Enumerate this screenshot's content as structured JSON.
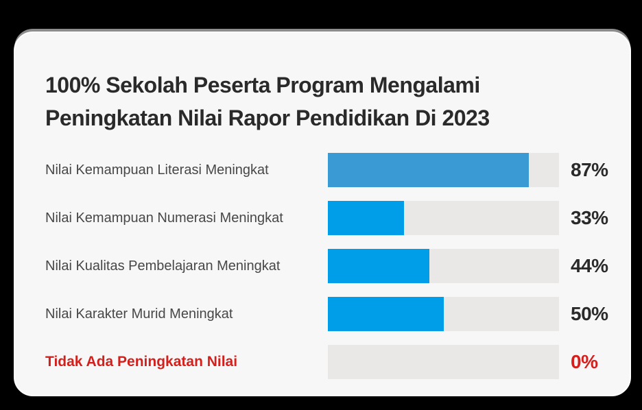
{
  "title": {
    "line1": "100% Sekolah Peserta Program Mengalami",
    "line2": "Peningkatan Nilai Rapor Pendidikan Di 2023",
    "full": "100% Sekolah Peserta Program Mengalami Peningkatan Nilai Rapor Pendidikan Di 2023"
  },
  "colors": {
    "page_background": "#000000",
    "card_background": "#f7f7f7",
    "card_top_band": "#8d8d8d",
    "title_text": "#2a2a2a",
    "label_text": "#474747",
    "track_gray": "#e9e8e6",
    "bar_blue_muted": "#3a9ad4",
    "bar_blue_bright": "#009ee8",
    "accent_red": "#d3201d"
  },
  "rows": [
    {
      "label": "Nilai Kemampuan Literasi Meningkat",
      "value": 87,
      "value_label": "87%",
      "fill_color": "#3a9ad4",
      "emphasis": false
    },
    {
      "label": "Nilai Kemampuan Numerasi Meningkat",
      "value": 33,
      "value_label": "33%",
      "fill_color": "#009ee8",
      "emphasis": false
    },
    {
      "label": "Nilai Kualitas Pembelajaran Meningkat",
      "value": 44,
      "value_label": "44%",
      "fill_color": "#009ee8",
      "emphasis": false
    },
    {
      "label": "Nilai Karakter Murid Meningkat",
      "value": 50,
      "value_label": "50%",
      "fill_color": "#009ee8",
      "emphasis": false
    },
    {
      "label": "Tidak Ada Peningkatan Nilai",
      "value": 0,
      "value_label": "0%",
      "fill_color": "#009ee8",
      "emphasis": true
    }
  ],
  "chart_data": {
    "type": "bar",
    "orientation": "horizontal",
    "title": "100% Sekolah Peserta Program Mengalami Peningkatan Nilai Rapor Pendidikan Di 2023",
    "categories": [
      "Nilai Kemampuan Literasi Meningkat",
      "Nilai Kemampuan Numerasi Meningkat",
      "Nilai Kualitas Pembelajaran Meningkat",
      "Nilai Karakter Murid Meningkat",
      "Tidak Ada Peningkatan Nilai"
    ],
    "values": [
      87,
      33,
      44,
      50,
      0
    ],
    "value_labels": [
      "87%",
      "33%",
      "44%",
      "50%",
      "0%"
    ],
    "xlabel": "",
    "ylabel": "",
    "xlim": [
      0,
      100
    ],
    "grid": false,
    "legend": "none",
    "value_label_position": "right-of-track",
    "bar_colors": [
      "#3a9ad4",
      "#009ee8",
      "#009ee8",
      "#009ee8",
      "#009ee8"
    ],
    "emphasized_category_color": "#d3201d"
  }
}
